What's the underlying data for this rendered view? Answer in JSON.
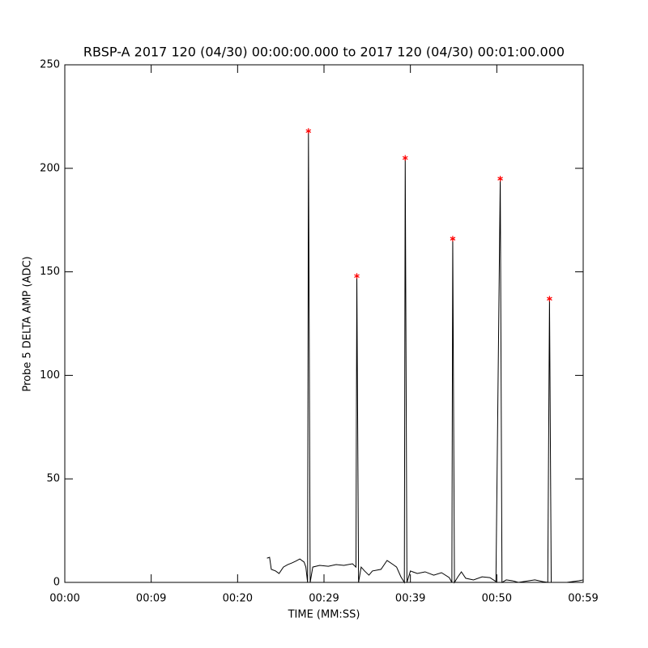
{
  "chart_data": {
    "type": "line",
    "title": "RBSP-A 2017 120 (04/30) 00:00:00.000 to 2017 120 (04/30) 00:01:00.000",
    "xlabel": "TIME (MM:SS)",
    "ylabel": "Probe 5 DELTA AMP (ADC)",
    "xlim": [
      0,
      60
    ],
    "ylim": [
      0,
      250
    ],
    "xticks": [
      {
        "value": 0,
        "label": "00:00"
      },
      {
        "value": 10,
        "label": "00:09"
      },
      {
        "value": 20,
        "label": "00:20"
      },
      {
        "value": 30,
        "label": "00:29"
      },
      {
        "value": 40,
        "label": "00:39"
      },
      {
        "value": 50,
        "label": "00:50"
      },
      {
        "value": 60,
        "label": "00:59"
      }
    ],
    "yticks": [
      0,
      50,
      100,
      150,
      200,
      250
    ],
    "series": [
      {
        "type": "line",
        "color": "#000000",
        "x": [
          23.4,
          23.7,
          23.9,
          24.4,
          24.8,
          25.3,
          25.8,
          26.3,
          26.7,
          27.2,
          27.7,
          27.9,
          28.1,
          28.2,
          28.4,
          28.7,
          29.5,
          30.5,
          31.4,
          32.3,
          33.3,
          33.7,
          33.8,
          34.0,
          34.3,
          34.7,
          35.2,
          35.6,
          36.6,
          37.3,
          38.0,
          38.4,
          38.9,
          39.3,
          39.4,
          39.6,
          40.0,
          40.8,
          41.7,
          42.7,
          43.6,
          44.5,
          44.8,
          44.9,
          45.1,
          45.5,
          45.9,
          46.4,
          47.3,
          48.3,
          49.2,
          49.9,
          50.4,
          50.6,
          51.1,
          51.8,
          52.5,
          54.4,
          55.3,
          55.9,
          56.1,
          56.3,
          58.1,
          59.5,
          60
        ],
        "values": [
          11.7,
          12.1,
          6.3,
          5.5,
          4.3,
          7.4,
          8.6,
          9.4,
          10.2,
          11.3,
          9.8,
          7.4,
          0,
          218,
          0,
          7.4,
          8.2,
          7.8,
          8.6,
          8.2,
          9.0,
          7.4,
          148,
          0,
          7.4,
          5.5,
          3.5,
          5.5,
          6.3,
          10.6,
          8.6,
          7.4,
          2.7,
          0,
          205,
          0,
          5.5,
          4.3,
          5.1,
          3.5,
          4.7,
          2.3,
          0,
          166,
          0,
          2.7,
          5.1,
          2.0,
          1.2,
          2.7,
          2.3,
          0.4,
          195,
          0,
          1.2,
          0.8,
          0,
          1.2,
          0.4,
          0,
          137,
          0,
          0,
          0.8,
          1.2
        ]
      },
      {
        "type": "scatter",
        "marker": "asterisk",
        "color": "#ff0000",
        "x": [
          28.2,
          33.8,
          39.4,
          44.9,
          50.4,
          56.1
        ],
        "values": [
          218,
          148,
          205,
          166,
          195,
          137
        ]
      }
    ]
  }
}
